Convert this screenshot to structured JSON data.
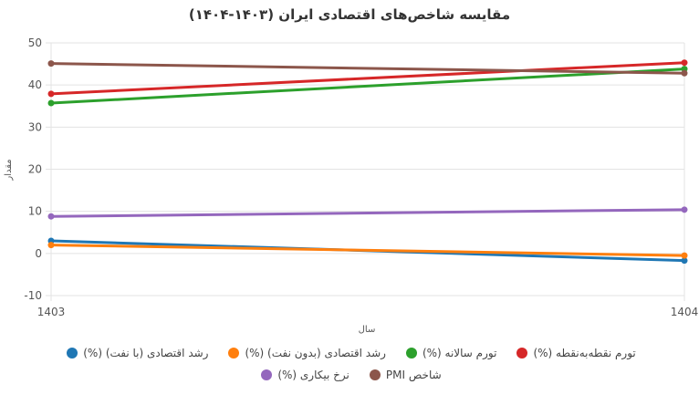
{
  "chart_data": {
    "type": "line",
    "title": "مقایسه شاخص‌های اقتصادی ایران (۱۴۰۳-۱۴۰۴)",
    "xlabel": "سال",
    "ylabel": "مقدار",
    "x": [
      "1403",
      "1404"
    ],
    "ylim": [
      -10,
      50
    ],
    "yticks": [
      "-10",
      "0",
      "10",
      "20",
      "30",
      "40",
      "50"
    ],
    "grid": true,
    "legend_position": "bottom",
    "series": [
      {
        "name": "رشد اقتصادی (با نفت) (%)",
        "color": "#1f77b4",
        "values": [
          3.0,
          -1.7
        ]
      },
      {
        "name": "رشد اقتصادی (بدون نفت) (%)",
        "color": "#ff7f0e",
        "values": [
          2.0,
          -0.5
        ]
      },
      {
        "name": "تورم سالانه (%)",
        "color": "#2ca02c",
        "values": [
          35.7,
          43.8
        ]
      },
      {
        "name": "تورم نقطه‌به‌نقطه (%)",
        "color": "#d62728",
        "values": [
          37.9,
          45.3
        ]
      },
      {
        "name": "نرخ بیکاری (%)",
        "color": "#9467bd",
        "values": [
          8.8,
          10.4
        ]
      },
      {
        "name": "شاخص PMI",
        "color": "#8c564b",
        "values": [
          45.1,
          42.8
        ]
      }
    ]
  }
}
